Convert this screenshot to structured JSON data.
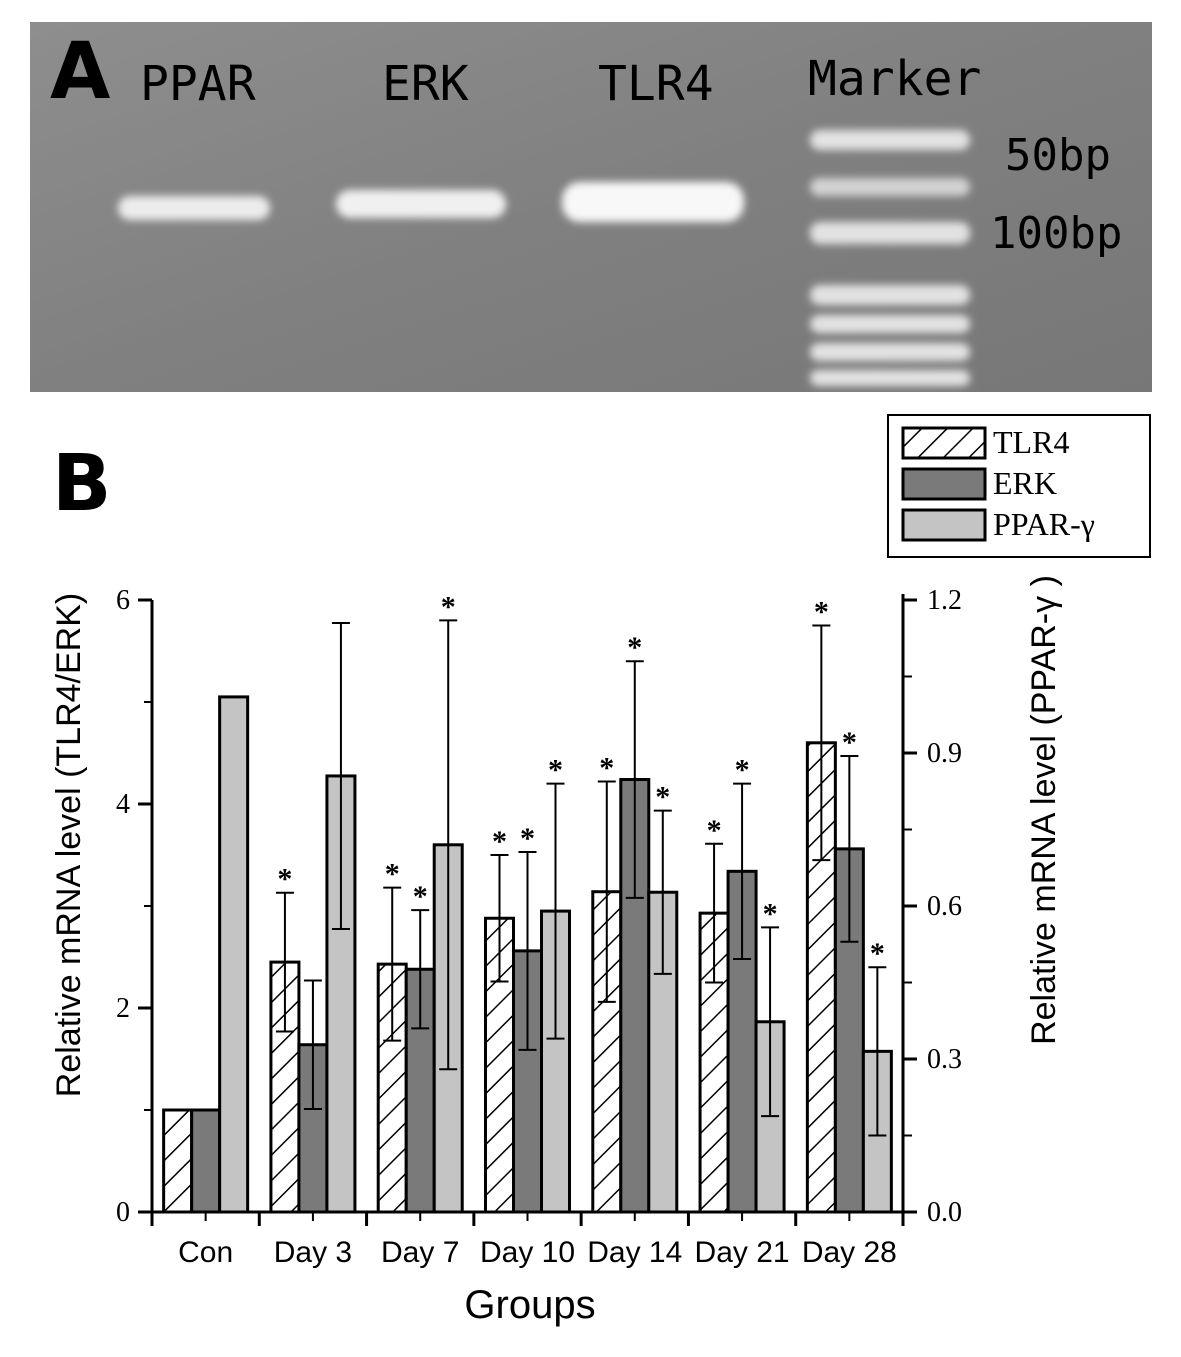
{
  "panel_a": {
    "letter": "A",
    "lanes": [
      "PPAR",
      "ERK",
      "TLR4",
      "Marker"
    ],
    "marker_labels": [
      "50bp",
      "100bp"
    ]
  },
  "panel_b": {
    "letter": "B"
  },
  "chart_data": {
    "type": "bar",
    "categories": [
      "Con",
      "Day 3",
      "Day 7",
      "Day 10",
      "Day 14",
      "Day 21",
      "Day 28"
    ],
    "xlabel": "Groups",
    "ylabel_left": "Relative mRNA level (TLR4/ERK)",
    "ylabel_right": "Relative mRNA level (PPAR-γ )",
    "ylim_left": [
      0,
      6
    ],
    "ylim_right": [
      0,
      1.2
    ],
    "yticks_left": [
      "0",
      "2",
      "4",
      "6"
    ],
    "yticks_right": [
      "0.0",
      "0.3",
      "0.6",
      "0.9",
      "1.2"
    ],
    "grid": false,
    "legend_position": "top-right",
    "significance_marker": "*",
    "series": [
      {
        "name": "TLR4",
        "axis": "left",
        "pattern": "hatched",
        "values": [
          1.0,
          2.45,
          2.43,
          2.88,
          3.14,
          2.93,
          4.6
        ],
        "error": [
          null,
          0.68,
          0.75,
          0.62,
          1.08,
          0.68,
          1.15
        ],
        "significant": [
          false,
          true,
          true,
          true,
          true,
          true,
          true
        ]
      },
      {
        "name": "ERK",
        "axis": "left",
        "color": "#7a7a7a",
        "values": [
          1.0,
          1.64,
          2.38,
          2.56,
          4.24,
          3.34,
          3.56
        ],
        "error": [
          null,
          0.63,
          0.58,
          0.97,
          1.16,
          0.86,
          0.91
        ],
        "significant": [
          false,
          false,
          true,
          true,
          true,
          true,
          true
        ]
      },
      {
        "name": "PPAR-γ",
        "axis": "right",
        "color": "#c4c4c4",
        "values": [
          1.01,
          0.855,
          0.72,
          0.59,
          0.627,
          0.373,
          0.315
        ],
        "error": [
          null,
          0.3,
          0.44,
          0.25,
          0.16,
          0.185,
          0.165
        ],
        "significant": [
          false,
          false,
          true,
          true,
          true,
          true,
          true
        ]
      }
    ]
  }
}
